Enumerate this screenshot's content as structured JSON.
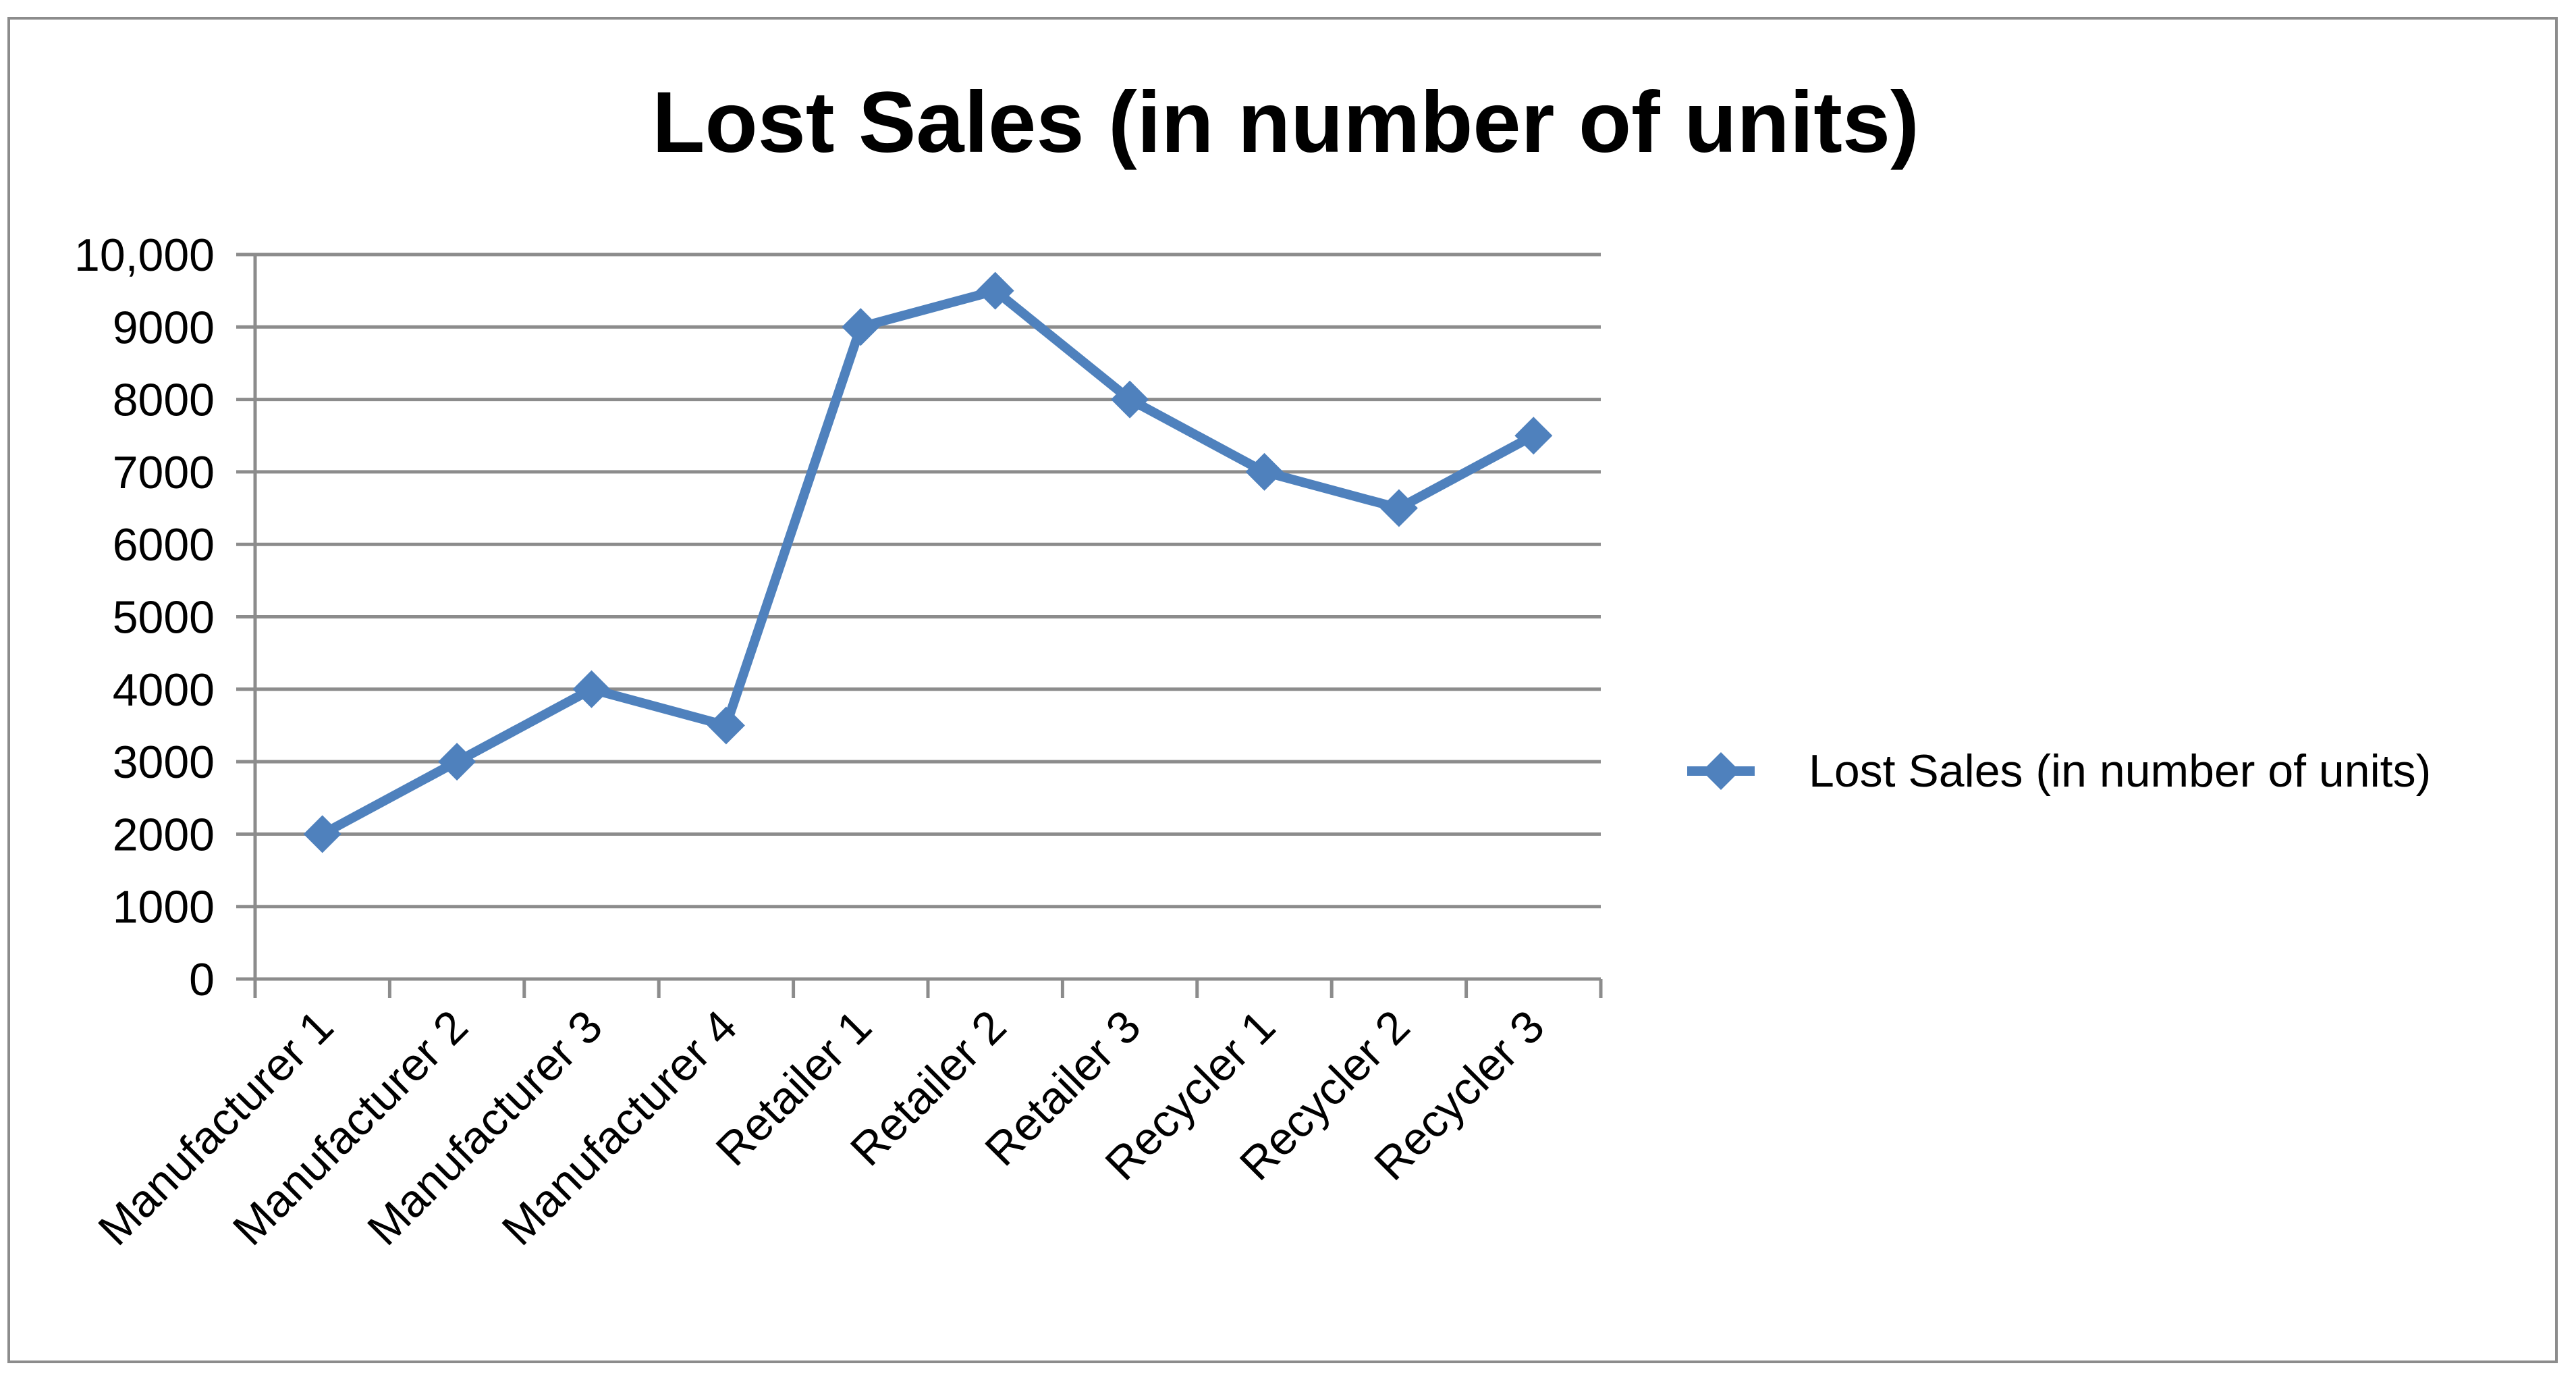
{
  "chart_data": {
    "type": "line",
    "title": "Lost Sales (in number of units)",
    "categories": [
      "Manufacturer 1",
      "Manufacturer 2",
      "Manufacturer 3",
      "Manufacturer 4",
      "Retailer 1",
      "Retailer 2",
      "Retailer 3",
      "Recycler 1",
      "Recycler 2",
      "Recycler 3"
    ],
    "series": [
      {
        "name": "Lost Sales (in number of units)",
        "values": [
          2000,
          3000,
          4000,
          3500,
          9000,
          9500,
          8000,
          7000,
          6500,
          7500
        ],
        "color": "#4F81BD"
      }
    ],
    "ylim": [
      0,
      10000
    ],
    "yticks": [
      0,
      1000,
      2000,
      3000,
      4000,
      5000,
      6000,
      7000,
      8000,
      9000,
      10000
    ],
    "ytick_labels": [
      "0",
      "1000",
      "2000",
      "3000",
      "4000",
      "5000",
      "6000",
      "7000",
      "8000",
      "9000",
      "10,000"
    ],
    "xlabel": "",
    "ylabel": "",
    "grid": true,
    "legend": "right",
    "marker": "diamond"
  }
}
